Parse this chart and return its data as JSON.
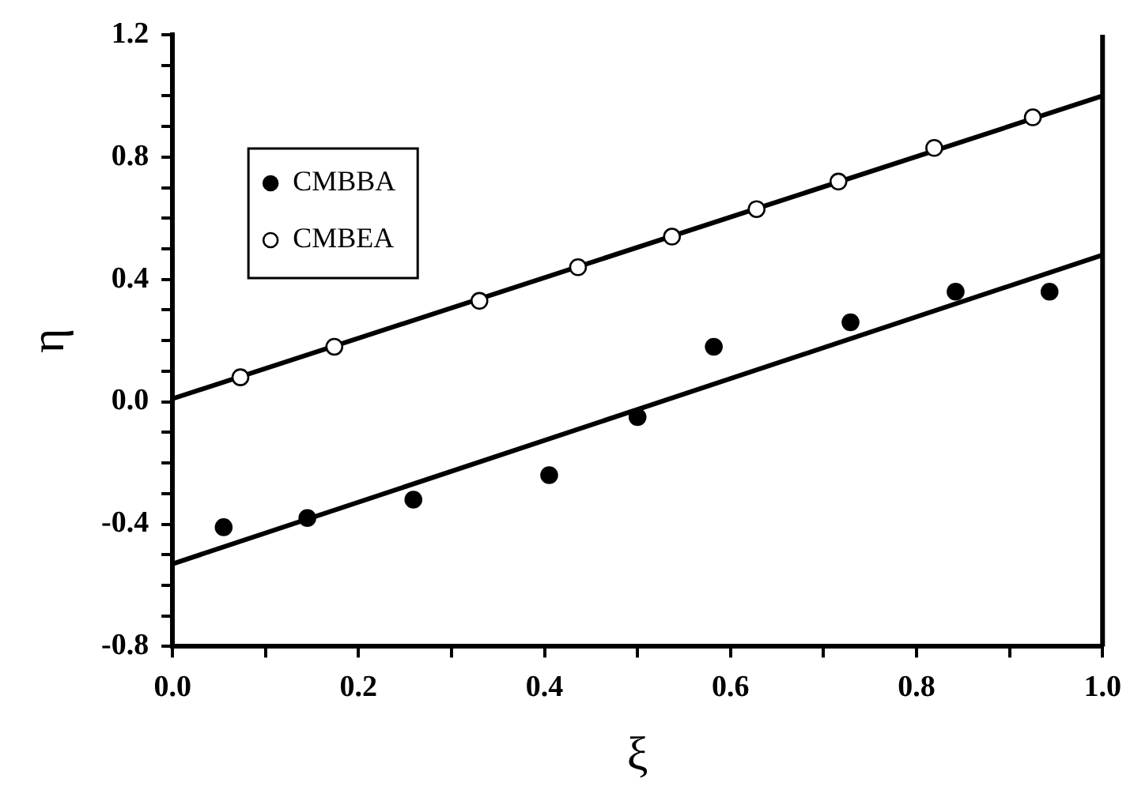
{
  "chart_data": {
    "type": "scatter",
    "xlabel": "ξ",
    "ylabel": "η",
    "xlim": [
      0,
      1
    ],
    "ylim": [
      -0.8,
      1.2
    ],
    "xticks": [
      {
        "value": 0,
        "label": "0.0"
      },
      {
        "value": 0.1,
        "label": null
      },
      {
        "value": 0.2,
        "label": "0.2"
      },
      {
        "value": 0.3,
        "label": null
      },
      {
        "value": 0.4,
        "label": "0.4"
      },
      {
        "value": 0.5,
        "label": null
      },
      {
        "value": 0.6,
        "label": "0.6"
      },
      {
        "value": 0.7,
        "label": null
      },
      {
        "value": 0.8,
        "label": "0.8"
      },
      {
        "value": 0.9,
        "label": null
      },
      {
        "value": 1,
        "label": "1.0"
      }
    ],
    "yticks": [
      {
        "value": -0.8,
        "label": "-0.8"
      },
      {
        "value": -0.7,
        "label": null
      },
      {
        "value": -0.6,
        "label": null
      },
      {
        "value": -0.5,
        "label": null
      },
      {
        "value": -0.4,
        "label": "-0.4"
      },
      {
        "value": -0.3,
        "label": null
      },
      {
        "value": -0.2,
        "label": null
      },
      {
        "value": -0.1,
        "label": null
      },
      {
        "value": 0,
        "label": "0.0"
      },
      {
        "value": 0.1,
        "label": null
      },
      {
        "value": 0.2,
        "label": null
      },
      {
        "value": 0.3,
        "label": null
      },
      {
        "value": 0.4,
        "label": "0.4"
      },
      {
        "value": 0.5,
        "label": null
      },
      {
        "value": 0.6,
        "label": null
      },
      {
        "value": 0.7,
        "label": null
      },
      {
        "value": 0.8,
        "label": "0.8"
      },
      {
        "value": 0.9,
        "label": null
      },
      {
        "value": 1.0,
        "label": null
      },
      {
        "value": 1.1,
        "label": null
      },
      {
        "value": 1.2,
        "label": "1.2"
      }
    ],
    "grid": false,
    "legend": "top left",
    "series": [
      {
        "name": "CMBBA",
        "marker": "circle",
        "color": "#000000",
        "x": [
          0.055,
          0.145,
          0.259,
          0.405,
          0.5,
          0.582,
          0.729,
          0.842,
          0.943
        ],
        "values": [
          -0.41,
          -0.38,
          -0.32,
          -0.24,
          -0.05,
          0.18,
          0.26,
          0.36,
          0.36
        ]
      },
      {
        "name": "CMBEA",
        "marker": "circle",
        "color": "#ffffff",
        "x": [
          0.073,
          0.174,
          0.33,
          0.436,
          0.537,
          0.628,
          0.716,
          0.819,
          0.925
        ],
        "values": [
          0.08,
          0.18,
          0.33,
          0.44,
          0.54,
          0.63,
          0.72,
          0.83,
          0.93
        ]
      },
      {
        "type": "line",
        "marker": "none",
        "color": "#000000",
        "x": [
          0,
          1
        ],
        "values": [
          -0.53,
          0.48
        ]
      },
      {
        "type": "line",
        "marker": "none",
        "color": "#000000",
        "x": [
          0,
          1
        ],
        "values": [
          0.01,
          1.0
        ]
      }
    ]
  }
}
